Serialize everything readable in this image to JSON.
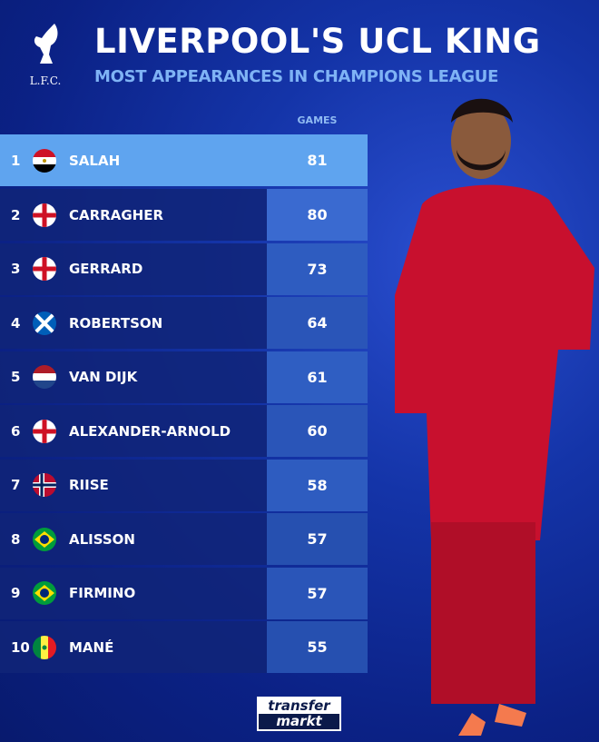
{
  "header": {
    "logo_text": "L.F.C.",
    "title": "LIVERPOOL'S UCL KING",
    "subtitle": "MOST APPEARANCES IN CHAMPIONS LEAGUE",
    "column_label": "GAMES"
  },
  "rows": [
    {
      "rank": "1",
      "flag": "egypt",
      "name": "SALAH",
      "games": "81"
    },
    {
      "rank": "2",
      "flag": "england",
      "name": "CARRAGHER",
      "games": "80"
    },
    {
      "rank": "3",
      "flag": "england",
      "name": "GERRARD",
      "games": "73"
    },
    {
      "rank": "4",
      "flag": "scotland",
      "name": "ROBERTSON",
      "games": "64"
    },
    {
      "rank": "5",
      "flag": "netherlands",
      "name": "VAN DIJK",
      "games": "61"
    },
    {
      "rank": "6",
      "flag": "england",
      "name": "ALEXANDER-ARNOLD",
      "games": "60"
    },
    {
      "rank": "7",
      "flag": "norway",
      "name": "RIISE",
      "games": "58"
    },
    {
      "rank": "8",
      "flag": "brazil",
      "name": "ALISSON",
      "games": "57"
    },
    {
      "rank": "9",
      "flag": "brazil",
      "name": "FIRMINO",
      "games": "57"
    },
    {
      "rank": "10",
      "flag": "senegal",
      "name": "MANÉ",
      "games": "55"
    }
  ],
  "footer": {
    "brand_line1": "transfer",
    "brand_line2": "markt"
  },
  "colors": {
    "highlight": "#5fa4ef",
    "value_cell": "#2e5cc0",
    "background": "#1434a8",
    "subtitle": "#7fb3f5"
  }
}
